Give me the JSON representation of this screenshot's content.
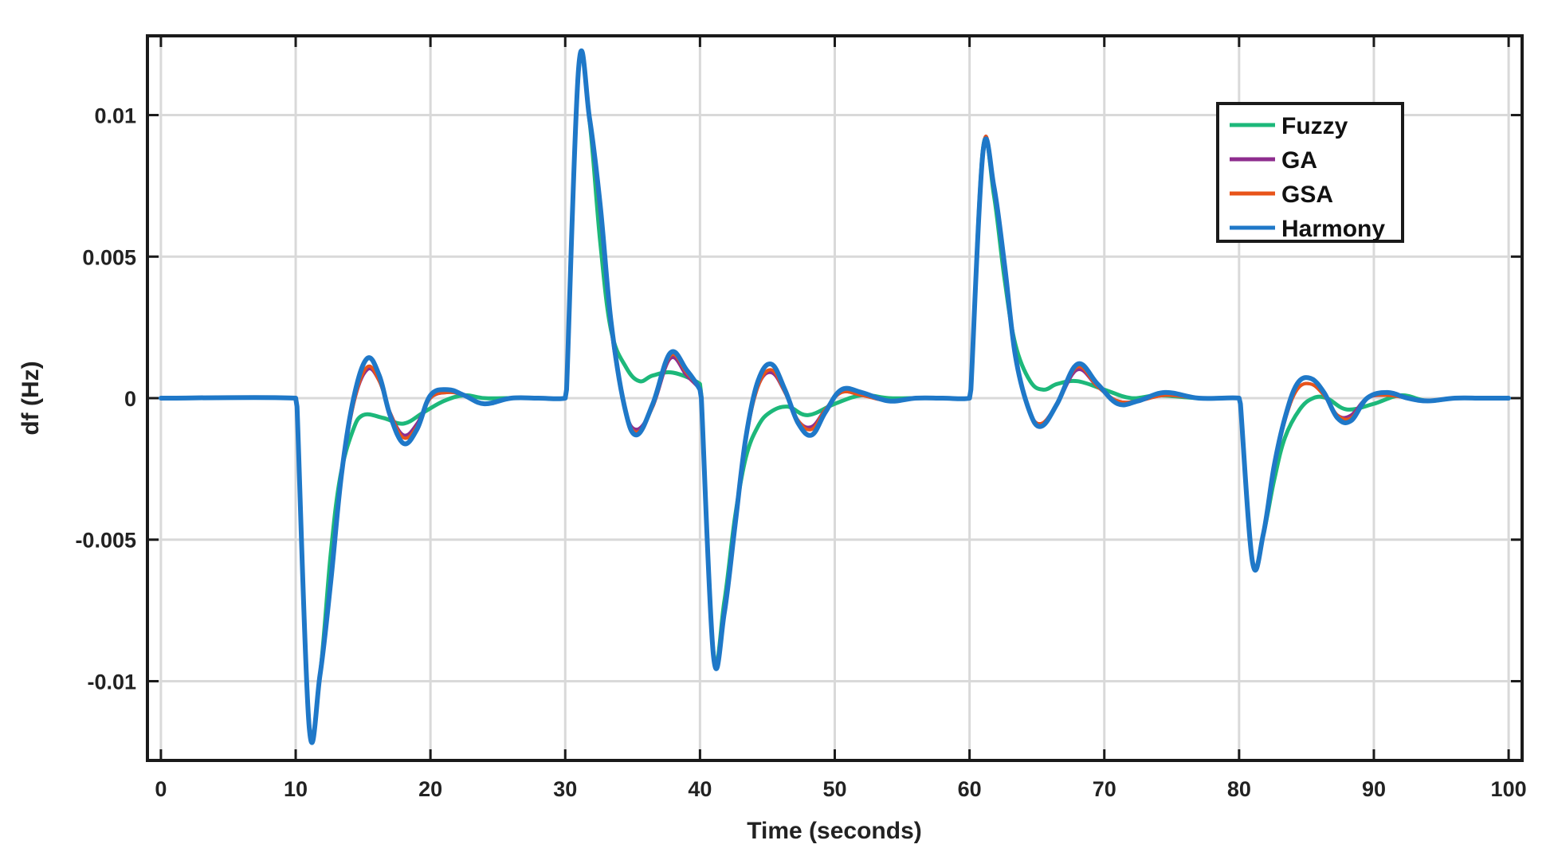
{
  "chart_data": {
    "type": "line",
    "xlabel": "Time (seconds)",
    "ylabel": "df (Hz)",
    "xlim": [
      -1,
      101
    ],
    "ylim": [
      -0.0128,
      0.0128
    ],
    "xticks": [
      0,
      10,
      20,
      30,
      40,
      50,
      60,
      70,
      80,
      90,
      100
    ],
    "xtick_labels": [
      "0",
      "10",
      "20",
      "30",
      "40",
      "50",
      "60",
      "70",
      "80",
      "90",
      "100"
    ],
    "yticks": [
      -0.01,
      -0.005,
      0,
      0.005,
      0.01
    ],
    "ytick_labels": [
      "-0.01",
      "-0.005",
      "0",
      "0.005",
      "0.01"
    ],
    "grid": true,
    "legend_position": "top-right",
    "series": [
      {
        "name": "Fuzzy",
        "color": "#1db87a",
        "x": [
          0,
          10,
          10.1,
          11,
          11.8,
          12.6,
          13.3,
          14.2,
          15,
          16.5,
          18,
          19.5,
          21,
          22.5,
          24,
          26,
          28,
          30,
          30.1,
          31,
          31.8,
          32.6,
          33.4,
          34.5,
          35.5,
          36.5,
          38,
          40,
          40.1,
          41,
          41.8,
          42.6,
          43.4,
          44.3,
          45.2,
          46.5,
          48,
          50,
          52,
          54,
          56,
          58,
          60,
          60.1,
          61,
          61.8,
          62.6,
          63.4,
          64.5,
          65.5,
          66.5,
          68,
          70,
          72,
          74,
          77,
          80,
          80.1,
          81,
          81.8,
          82.6,
          83.4,
          84.5,
          85.5,
          86.5,
          88,
          90,
          92,
          94,
          96,
          98,
          100
        ],
        "y": [
          0,
          0,
          -0.0003,
          -0.0115,
          -0.0098,
          -0.0055,
          -0.0028,
          -0.0012,
          -0.0006,
          -0.0007,
          -0.0009,
          -0.0005,
          -0.0001,
          0.0001,
          0,
          0,
          0,
          0,
          0.0003,
          0.0116,
          0.0098,
          0.0055,
          0.0024,
          0.0011,
          0.0006,
          0.0008,
          0.0009,
          0.0005,
          0.0001,
          -0.009,
          -0.0072,
          -0.0042,
          -0.0021,
          -0.001,
          -0.0005,
          -0.0003,
          -0.0006,
          -0.0002,
          0.0001,
          0,
          0,
          0,
          0,
          0.0003,
          0.0088,
          0.0072,
          0.0042,
          0.0019,
          0.0006,
          0.0003,
          0.0005,
          0.0006,
          0.0003,
          0,
          0.0001,
          0,
          0,
          -0.0002,
          -0.0058,
          -0.0048,
          -0.0029,
          -0.0014,
          -0.0004,
          0,
          0,
          -0.0004,
          -0.0002,
          0.0001,
          -0.0001,
          0,
          0,
          0
        ]
      },
      {
        "name": "GA",
        "color": "#8e2d8e",
        "x": [
          0,
          10,
          10.1,
          11,
          11.8,
          12.6,
          13.4,
          14.3,
          15.3,
          16.2,
          17,
          18,
          19,
          20,
          21.3,
          22.5,
          24,
          26,
          28,
          30,
          30.1,
          31,
          31.8,
          32.6,
          33.4,
          34.4,
          35.3,
          36.5,
          37.8,
          39,
          40,
          40.1,
          41,
          41.8,
          42.6,
          43.4,
          44.3,
          45.3,
          46.3,
          47.3,
          48.3,
          49.3,
          50.5,
          52,
          54,
          56,
          58,
          60,
          60.1,
          61,
          61.8,
          62.6,
          63.4,
          64.4,
          65.3,
          66.5,
          68,
          69.5,
          71,
          72.5,
          74.5,
          77,
          80,
          80.1,
          81,
          81.8,
          82.6,
          83.4,
          84.3,
          85.3,
          86.3,
          87.3,
          88.3,
          89.5,
          91,
          92.5,
          94,
          96,
          98,
          100
        ],
        "y": [
          0,
          0,
          -0.0003,
          -0.0115,
          -0.0098,
          -0.0065,
          -0.0028,
          -0.0002,
          0.001,
          0.0006,
          -0.0005,
          -0.0013,
          -0.0009,
          0,
          0.0002,
          0.0001,
          -0.0002,
          0,
          0,
          0,
          0.0003,
          0.0116,
          0.0098,
          0.0065,
          0.0025,
          -0.0003,
          -0.0011,
          -0.0003,
          0.0014,
          0.0008,
          0.0003,
          0,
          -0.009,
          -0.0075,
          -0.0045,
          -0.0015,
          0.0004,
          0.0009,
          0.0002,
          -0.0008,
          -0.001,
          -0.0004,
          0.0002,
          0.0001,
          -0.0001,
          0,
          0,
          0,
          0.0003,
          0.0088,
          0.0075,
          0.0045,
          0.0014,
          -0.0004,
          -0.0009,
          -0.0002,
          0.001,
          0.0004,
          -0.0001,
          -0.0001,
          0.0001,
          0,
          0,
          -0.0002,
          -0.0058,
          -0.0048,
          -0.0025,
          -0.0008,
          0.0003,
          0.0005,
          0.0001,
          -0.0006,
          -0.0006,
          0,
          0.0001,
          0,
          -0.0001,
          0,
          0,
          0
        ]
      },
      {
        "name": "GSA",
        "color": "#e8541a",
        "x": [
          0,
          10,
          10.1,
          11,
          11.8,
          12.6,
          13.4,
          14.3,
          15.3,
          16.2,
          17,
          18,
          19,
          20,
          21.3,
          22.5,
          24,
          26,
          28,
          30,
          30.1,
          31,
          31.8,
          32.6,
          33.4,
          34.4,
          35.3,
          36.5,
          37.8,
          39,
          40,
          40.1,
          41,
          41.8,
          42.6,
          43.4,
          44.3,
          45.3,
          46.3,
          47.3,
          48.3,
          49.3,
          50.5,
          52,
          54,
          56,
          58,
          60,
          60.1,
          61,
          61.8,
          62.6,
          63.4,
          64.4,
          65.3,
          66.5,
          68,
          69.5,
          71,
          72.5,
          74.5,
          77,
          80,
          80.1,
          81,
          81.8,
          82.6,
          83.4,
          84.3,
          85.3,
          86.3,
          87.3,
          88.3,
          89.5,
          91,
          92.5,
          94,
          96,
          98,
          100
        ],
        "y": [
          0,
          0,
          -0.0003,
          -0.0115,
          -0.0098,
          -0.0065,
          -0.0028,
          -0.0002,
          0.0011,
          0.0006,
          -0.0005,
          -0.0014,
          -0.001,
          0,
          0.0002,
          0.0001,
          -0.0002,
          0,
          0,
          0,
          0.0003,
          0.0116,
          0.0098,
          0.0065,
          0.0025,
          -0.0003,
          -0.0012,
          -0.0003,
          0.0015,
          0.0009,
          0.0003,
          0,
          -0.009,
          -0.0075,
          -0.0045,
          -0.0015,
          0.0004,
          0.001,
          0.0002,
          -0.0008,
          -0.0011,
          -0.0004,
          0.0002,
          0.0001,
          -0.0001,
          0,
          0,
          0,
          0.0003,
          0.0088,
          0.0075,
          0.0045,
          0.0014,
          -0.0004,
          -0.0009,
          -0.0002,
          0.0011,
          0.0004,
          -0.0001,
          -0.0001,
          0.0001,
          0,
          0,
          -0.0002,
          -0.0058,
          -0.0048,
          -0.0025,
          -0.0008,
          0.0003,
          0.0005,
          0.0001,
          -0.0006,
          -0.0007,
          0,
          0.0001,
          0,
          -0.0001,
          0,
          0,
          0
        ]
      },
      {
        "name": "Harmony",
        "color": "#1f78c8",
        "x": [
          0,
          10,
          10.1,
          11,
          11.8,
          12.6,
          13.4,
          14.3,
          15.3,
          16.2,
          17,
          18,
          19,
          20,
          21.3,
          22.5,
          24,
          26,
          28,
          30,
          30.1,
          31,
          31.8,
          32.6,
          33.4,
          34.4,
          35.3,
          36.5,
          37.8,
          39,
          40,
          40.1,
          41,
          41.8,
          42.6,
          43.4,
          44.3,
          45.3,
          46.3,
          47.3,
          48.3,
          49.3,
          50.5,
          52,
          54,
          56,
          58,
          60,
          60.1,
          61,
          61.8,
          62.6,
          63.4,
          64.4,
          65.3,
          66.5,
          68,
          69.5,
          71,
          72.5,
          74.5,
          77,
          80,
          80.1,
          81,
          81.8,
          82.6,
          83.4,
          84.3,
          85.3,
          86.3,
          87.3,
          88.3,
          89.5,
          91,
          92.5,
          94,
          96,
          98,
          100
        ],
        "y": [
          0,
          0,
          -0.0003,
          -0.0116,
          -0.0098,
          -0.0065,
          -0.0027,
          0,
          0.0014,
          0.0008,
          -0.0006,
          -0.0016,
          -0.0011,
          0.0001,
          0.0003,
          0.0001,
          -0.0002,
          0,
          0,
          0,
          0.0003,
          0.0117,
          0.0099,
          0.0068,
          0.0027,
          -0.0003,
          -0.0013,
          -0.0002,
          0.0016,
          0.001,
          0.0003,
          0,
          -0.0091,
          -0.0076,
          -0.0045,
          -0.0014,
          0.0006,
          0.0012,
          0.0003,
          -0.0009,
          -0.0013,
          -0.0005,
          0.0003,
          0.0002,
          -0.0001,
          0,
          0,
          0,
          0.0003,
          0.0087,
          0.0075,
          0.0047,
          0.0015,
          -0.0004,
          -0.001,
          -0.0002,
          0.0012,
          0.0005,
          -0.0002,
          -0.0001,
          0.0002,
          0,
          0,
          -0.0002,
          -0.0058,
          -0.0048,
          -0.0024,
          -0.0007,
          0.0005,
          0.0007,
          0.0002,
          -0.0007,
          -0.0008,
          0,
          0.0002,
          0,
          -0.0001,
          0,
          0,
          0
        ]
      }
    ]
  }
}
